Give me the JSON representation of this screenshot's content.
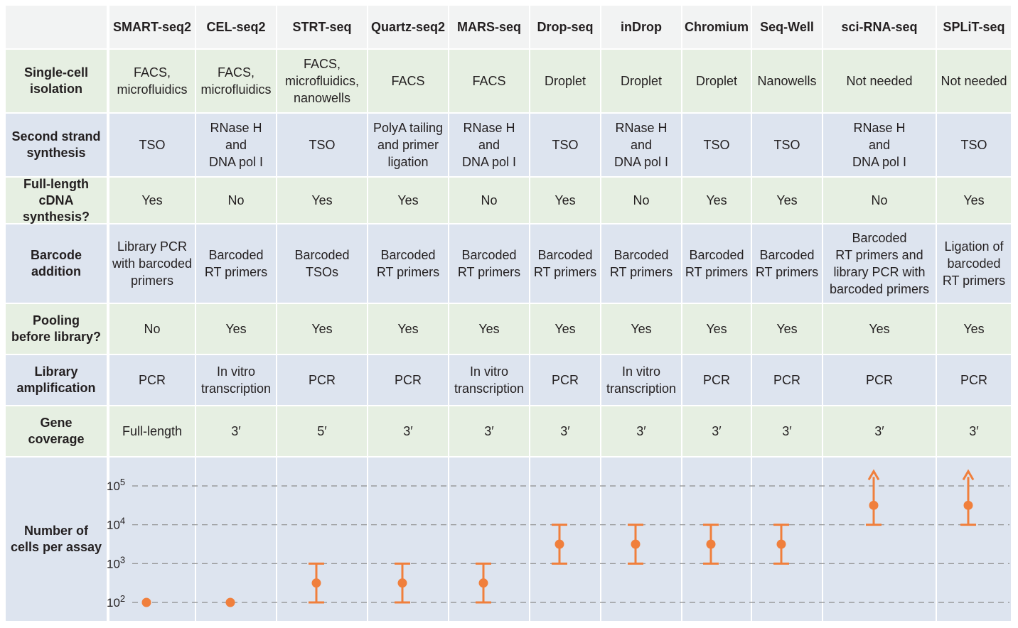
{
  "methods": [
    "SMART-seq2",
    "CEL-seq2",
    "STRT-seq",
    "Quartz-seq2",
    "MARS-seq",
    "Drop-seq",
    "inDrop",
    "Chromium",
    "Seq-Well",
    "sci-RNA-seq",
    "SPLiT-seq"
  ],
  "rows": [
    {
      "label": "Single-cell\nisolation",
      "values": [
        "FACS,\nmicrofluidics",
        "FACS,\nmicrofluidics",
        "FACS,\nmicrofluidics,\nnanowells",
        "FACS",
        "FACS",
        "Droplet",
        "Droplet",
        "Droplet",
        "Nanowells",
        "Not needed",
        "Not needed"
      ]
    },
    {
      "label": "Second strand\nsynthesis",
      "values": [
        "TSO",
        "RNase H\nand\nDNA pol I",
        "TSO",
        "PolyA tailing\nand primer\nligation",
        "RNase H\nand\nDNA pol I",
        "TSO",
        "RNase H\nand\nDNA pol I",
        "TSO",
        "TSO",
        "RNase H\nand\nDNA pol I",
        "TSO"
      ]
    },
    {
      "label": "Full-length\ncDNA synthesis?",
      "values": [
        "Yes",
        "No",
        "Yes",
        "Yes",
        "No",
        "Yes",
        "No",
        "Yes",
        "Yes",
        "No",
        "Yes"
      ]
    },
    {
      "label": "Barcode\naddition",
      "values": [
        "Library PCR\nwith barcoded\nprimers",
        "Barcoded\nRT primers",
        "Barcoded\nTSOs",
        "Barcoded\nRT primers",
        "Barcoded\nRT primers",
        "Barcoded\nRT primers",
        "Barcoded\nRT primers",
        "Barcoded\nRT primers",
        "Barcoded\nRT primers",
        "Barcoded\nRT primers  and\nlibrary PCR with\nbarcoded primers",
        "Ligation of\nbarcoded\nRT primers"
      ]
    },
    {
      "label": "Pooling\nbefore library?",
      "values": [
        "No",
        "Yes",
        "Yes",
        "Yes",
        "Yes",
        "Yes",
        "Yes",
        "Yes",
        "Yes",
        "Yes",
        "Yes"
      ]
    },
    {
      "label": "Library\namplification",
      "values": [
        "PCR",
        "In vitro\ntranscription",
        "PCR",
        "PCR",
        "In vitro\ntranscription",
        "PCR",
        "In vitro\ntranscription",
        "PCR",
        "PCR",
        "PCR",
        "PCR"
      ]
    },
    {
      "label": "Gene\ncoverage",
      "values": [
        "Full-length",
        "3′",
        "5′",
        "3′",
        "3′",
        "3′",
        "3′",
        "3′",
        "3′",
        "3′",
        "3′"
      ]
    }
  ],
  "chart_row_label": "Number of\ncells per assay",
  "colors": {
    "green": "#e6efe2",
    "blue": "#dde4ef",
    "accent": "#f07f3c",
    "grid": "#8c8c8c"
  },
  "chart_data": {
    "type": "scatter",
    "yscale": "log",
    "ylim": [
      100,
      100000
    ],
    "ytick_labels": [
      {
        "base": "10",
        "exp": "2",
        "value": 100
      },
      {
        "base": "10",
        "exp": "3",
        "value": 1000
      },
      {
        "base": "10",
        "exp": "4",
        "value": 10000
      },
      {
        "base": "10",
        "exp": "5",
        "value": 100000
      }
    ],
    "categories": [
      "SMART-seq2",
      "CEL-seq2",
      "STRT-seq",
      "Quartz-seq2",
      "MARS-seq",
      "Drop-seq",
      "inDrop",
      "Chromium",
      "Seq-Well",
      "sci-RNA-seq",
      "SPLiT-seq"
    ],
    "points": [
      {
        "value": 100,
        "low": null,
        "high": null,
        "open_ended": false
      },
      {
        "value": 100,
        "low": null,
        "high": null,
        "open_ended": false
      },
      {
        "value": 316,
        "low": 100,
        "high": 1000,
        "open_ended": false
      },
      {
        "value": 316,
        "low": 100,
        "high": 1000,
        "open_ended": false
      },
      {
        "value": 316,
        "low": 100,
        "high": 1000,
        "open_ended": false
      },
      {
        "value": 3162,
        "low": 1000,
        "high": 10000,
        "open_ended": false
      },
      {
        "value": 3162,
        "low": 1000,
        "high": 10000,
        "open_ended": false
      },
      {
        "value": 3162,
        "low": 1000,
        "high": 10000,
        "open_ended": false
      },
      {
        "value": 3162,
        "low": 1000,
        "high": 10000,
        "open_ended": false
      },
      {
        "value": 31623,
        "low": 10000,
        "high": null,
        "open_ended": true
      },
      {
        "value": 31623,
        "low": 10000,
        "high": null,
        "open_ended": true
      }
    ],
    "grid": "dashed horizontal at each decade"
  }
}
